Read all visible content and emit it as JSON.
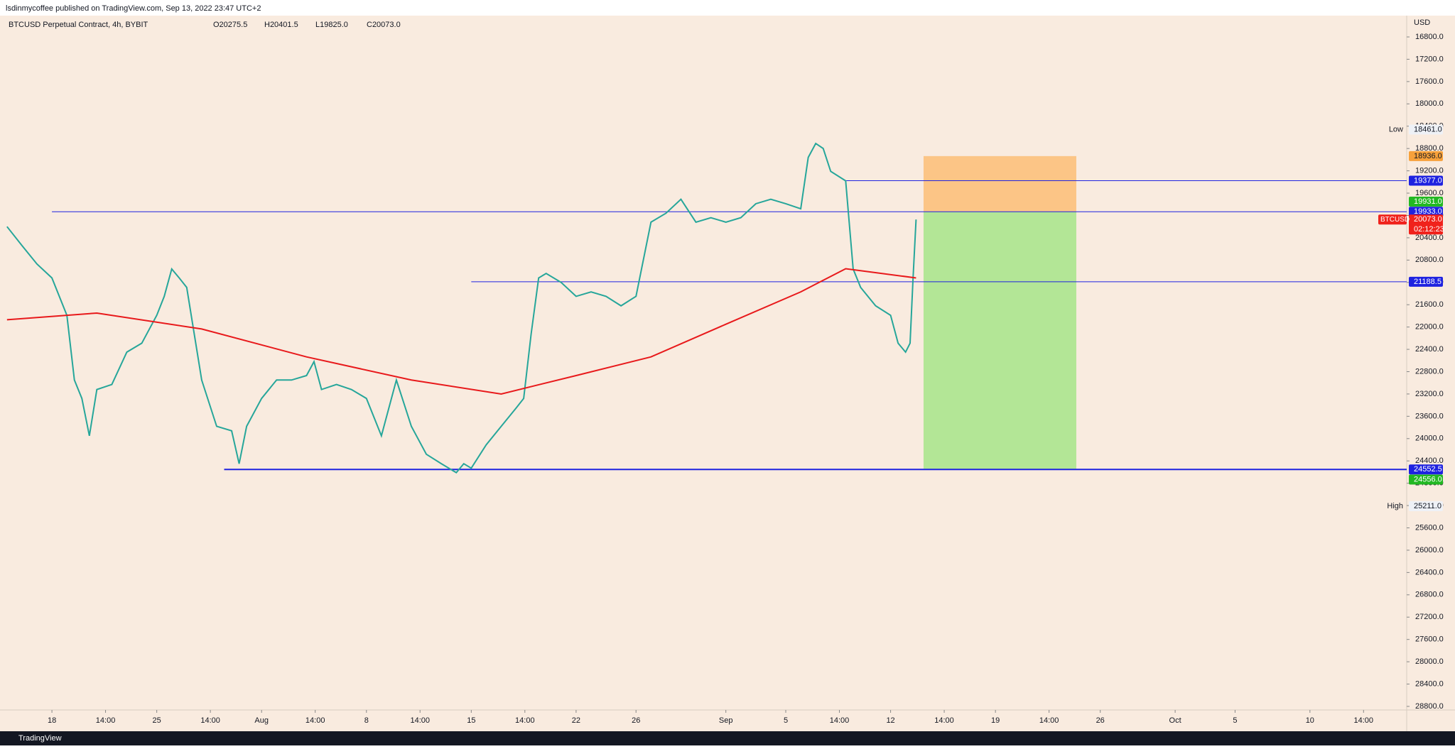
{
  "header": "lsdinmycoffee published on TradingView.com, Sep 13, 2022 23:47 UTC+2",
  "footer": "TradingView",
  "chart_data": {
    "type": "line",
    "title": "BTCUSD Perpetual Contract, 4h, BYBIT",
    "ohlc": [
      "O20275.5",
      "H20401.5",
      "L19825.0",
      "C20073.0"
    ],
    "axis_unit": "USD",
    "y_inverted": true,
    "xlim": [
      -3.04,
      90.46
    ],
    "ylim": [
      16418,
      28864
    ],
    "xticks": [
      {
        "value": 0,
        "label": "18"
      },
      {
        "value": 3.58,
        "label": "14:00"
      },
      {
        "value": 7,
        "label": "25"
      },
      {
        "value": 10.58,
        "label": "14:00"
      },
      {
        "value": 14,
        "label": "Aug"
      },
      {
        "value": 17.58,
        "label": "14:00"
      },
      {
        "value": 21,
        "label": "8"
      },
      {
        "value": 24.58,
        "label": "14:00"
      },
      {
        "value": 28,
        "label": "15"
      },
      {
        "value": 31.58,
        "label": "14:00"
      },
      {
        "value": 35,
        "label": "22"
      },
      {
        "value": 39,
        "label": "26"
      },
      {
        "value": 45,
        "label": "Sep"
      },
      {
        "value": 49,
        "label": "5"
      },
      {
        "value": 52.58,
        "label": "14:00"
      },
      {
        "value": 56,
        "label": "12"
      },
      {
        "value": 59.58,
        "label": "14:00"
      },
      {
        "value": 63,
        "label": "19"
      },
      {
        "value": 66.58,
        "label": "14:00"
      },
      {
        "value": 70,
        "label": "26"
      },
      {
        "value": 75,
        "label": "Oct"
      },
      {
        "value": 79,
        "label": "5"
      },
      {
        "value": 84,
        "label": "10"
      },
      {
        "value": 87.58,
        "label": "14:00"
      }
    ],
    "yticks": [
      {
        "value": 16800,
        "label": "16800.0"
      },
      {
        "value": 17200,
        "label": "17200.0"
      },
      {
        "value": 17600,
        "label": "17600.0"
      },
      {
        "value": 18000,
        "label": "18000.0"
      },
      {
        "value": 18400,
        "label": "18400.0"
      },
      {
        "value": 18800,
        "label": "18800.0"
      },
      {
        "value": 19200,
        "label": "19200.0"
      },
      {
        "value": 19600,
        "label": "19600.0"
      },
      {
        "value": 20000,
        "label": "20000.0"
      },
      {
        "value": 20400,
        "label": "20400.0"
      },
      {
        "value": 20800,
        "label": "20800.0"
      },
      {
        "value": 21200,
        "label": "21200.0"
      },
      {
        "value": 21600,
        "label": "21600.0"
      },
      {
        "value": 22000,
        "label": "22000.0"
      },
      {
        "value": 22400,
        "label": "22400.0"
      },
      {
        "value": 22800,
        "label": "22800.0"
      },
      {
        "value": 23200,
        "label": "23200.0"
      },
      {
        "value": 23600,
        "label": "23600.0"
      },
      {
        "value": 24000,
        "label": "24000.0"
      },
      {
        "value": 24400,
        "label": "24400.0"
      },
      {
        "value": 24800,
        "label": "24800.0"
      },
      {
        "value": 25200,
        "label": "25200.0"
      },
      {
        "value": 25600,
        "label": "25600.0"
      },
      {
        "value": 26000,
        "label": "26000.0"
      },
      {
        "value": 26400,
        "label": "26400.0"
      },
      {
        "value": 26800,
        "label": "26800.0"
      },
      {
        "value": 27200,
        "label": "27200.0"
      },
      {
        "value": 27600,
        "label": "27600.0"
      },
      {
        "value": 28000,
        "label": "28000.0"
      },
      {
        "value": 28400,
        "label": "28400.0"
      },
      {
        "value": 28800,
        "label": "28800.0"
      }
    ],
    "grid": false,
    "series": [
      {
        "name": "BTCUSD",
        "color": "#26a69a",
        "x": [
          -3,
          -2,
          -1,
          0,
          1,
          1.5,
          2,
          2.5,
          3,
          4,
          5,
          6,
          7,
          7.5,
          8,
          8.5,
          9,
          9.5,
          10,
          11,
          12,
          12.5,
          13,
          14,
          15,
          16,
          17,
          17.5,
          18,
          19,
          20,
          21,
          22,
          23,
          24,
          25,
          26,
          27,
          27.5,
          28,
          29,
          30,
          31,
          31.5,
          32,
          32.5,
          33,
          34,
          35,
          36,
          37,
          38,
          39,
          40,
          41,
          42,
          43,
          44,
          45,
          46,
          47,
          48,
          49,
          50,
          50.5,
          51,
          51.5,
          52,
          53,
          53.5,
          54,
          55,
          56,
          56.5,
          57,
          57.3,
          57.5,
          57.7
        ],
        "values": [
          20200,
          20540,
          20870,
          21120,
          21790,
          22950,
          23280,
          23950,
          23120,
          23030,
          22450,
          22290,
          21790,
          21450,
          20960,
          21120,
          21290,
          22120,
          22950,
          23780,
          23860,
          24450,
          23780,
          23280,
          22950,
          22950,
          22870,
          22620,
          23120,
          23030,
          23120,
          23280,
          23950,
          22950,
          23780,
          24280,
          24450,
          24610,
          24450,
          24530,
          24110,
          23780,
          23450,
          23280,
          22120,
          21120,
          21040,
          21200,
          21450,
          21370,
          21450,
          21620,
          21450,
          20120,
          19960,
          19710,
          20120,
          20040,
          20120,
          20040,
          19790,
          19710,
          19790,
          19880,
          18960,
          18710,
          18800,
          19210,
          19380,
          20960,
          21290,
          21620,
          21790,
          22290,
          22450,
          22290,
          21120,
          20073
        ]
      },
      {
        "color": "#e8191b",
        "x": [
          -3,
          3,
          10,
          17,
          24,
          30,
          35,
          40,
          45,
          50,
          53,
          57.7
        ],
        "values": [
          21870,
          21750,
          22035,
          22535,
          22950,
          23200,
          22870,
          22535,
          21950,
          21370,
          20955,
          21120
        ]
      }
    ],
    "levels": [
      {
        "value": 19377,
        "label": "19377.0",
        "color": "#1e22e0"
      },
      {
        "value": 19933,
        "label": "19933.0",
        "color": "#1e22e0"
      },
      {
        "value": 21188.5,
        "label": "21188.5",
        "color": "#1e22e0"
      },
      {
        "value": 24552.5,
        "label": "24552.5",
        "color": "#1e22e0"
      }
    ],
    "position": {
      "x": [
        58.2,
        68.4
      ],
      "stop": {
        "value": 18936,
        "label": "18936.0",
        "color": "#f7a13b"
      },
      "entry": {
        "value": 19931,
        "label": "19931.0",
        "color": "#22b822"
      },
      "target": {
        "value": 24556,
        "label": "24556.0",
        "color": "#22b822"
      }
    },
    "extremes": [
      {
        "text": "Low",
        "value": 18461,
        "label": "18461.0"
      },
      {
        "text": "High",
        "value": 25211,
        "label": "25211.0"
      }
    ],
    "last": {
      "name": "BTCUSD",
      "value": 20073,
      "label": "20073.0",
      "countdown": "02:12:23",
      "color": "#f0221c"
    }
  }
}
